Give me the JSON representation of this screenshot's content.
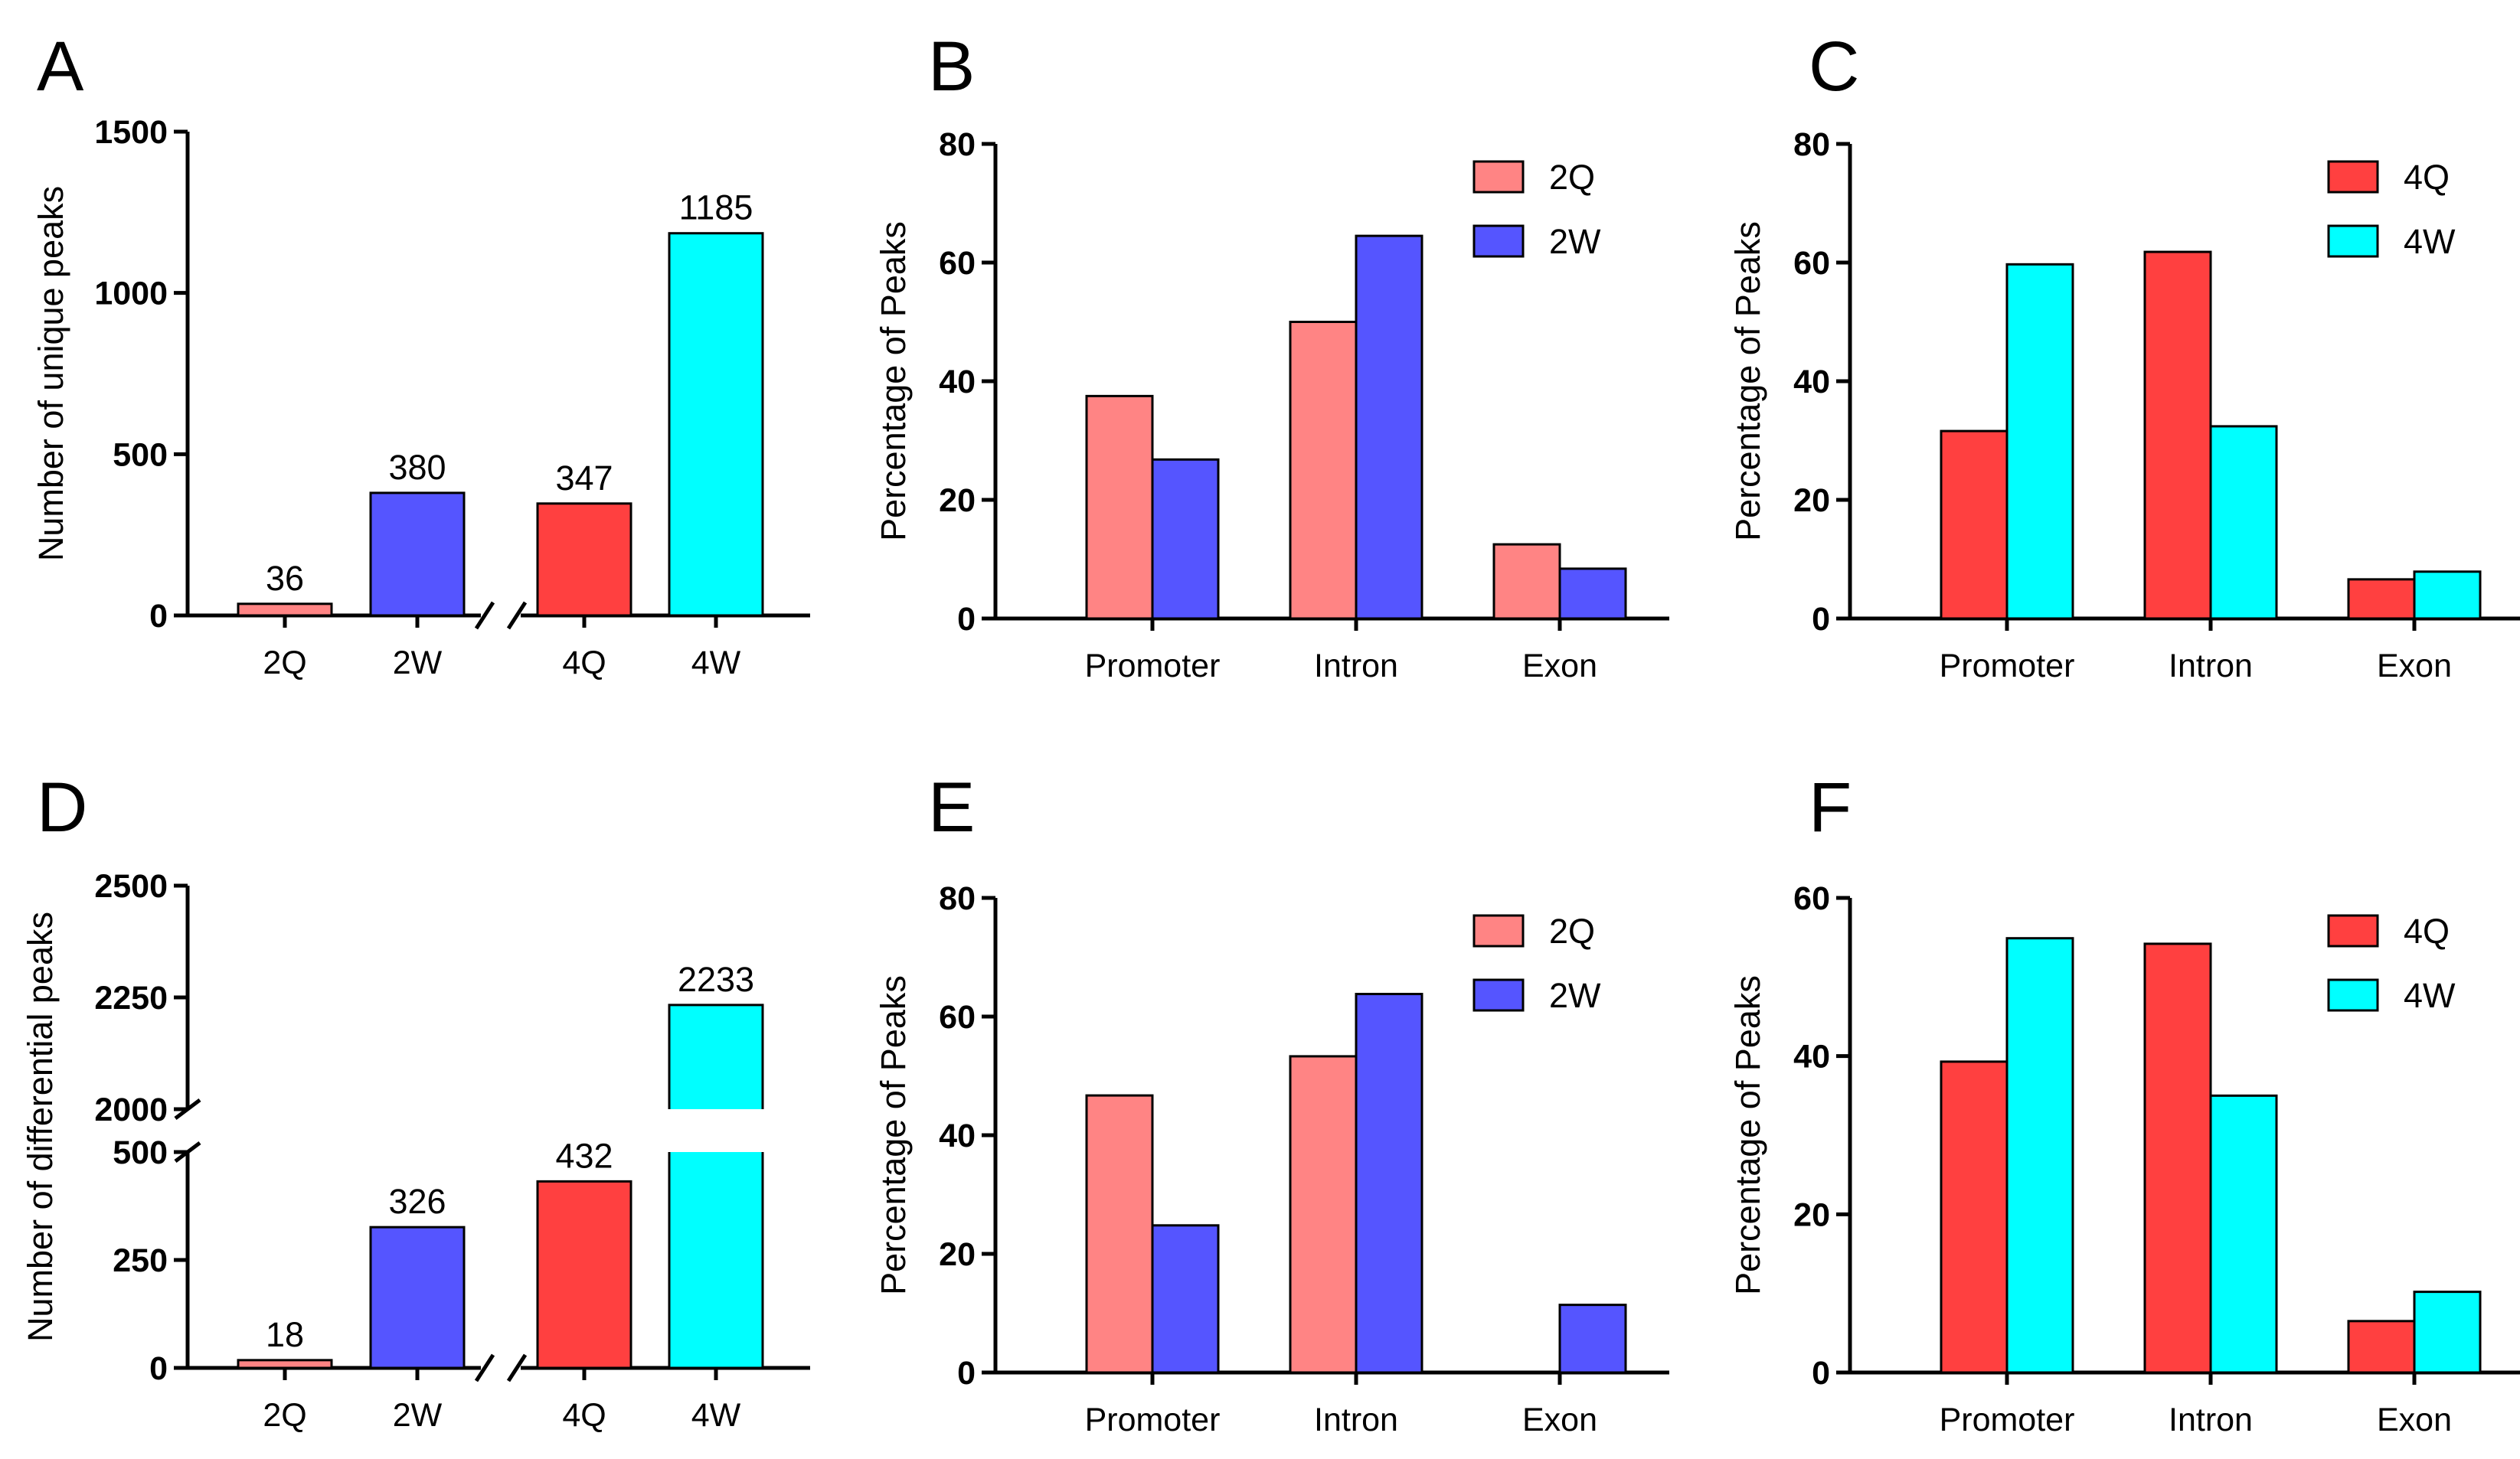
{
  "colors": {
    "2Q": "#ff8484",
    "2W": "#5555ff",
    "4Q": "#ff4040",
    "4W": "#00ffff",
    "axis": "#000000"
  },
  "chart_data": [
    {
      "id": "A",
      "type": "bar",
      "panel_label": "A",
      "title": "",
      "xlabel": "",
      "ylabel": "Number of unique peaks",
      "categories": [
        "2Q",
        "2W",
        "4Q",
        "4W"
      ],
      "values": [
        36,
        380,
        347,
        1185
      ],
      "value_labels": [
        "36",
        "380",
        "347",
        "1185"
      ],
      "bar_colors": [
        "2Q",
        "2W",
        "4Q",
        "4W"
      ],
      "ylim": [
        0,
        1500
      ],
      "yticks": [
        0,
        500,
        1000,
        1500
      ],
      "x_axis_break": "between 2W and 4Q",
      "grid": false
    },
    {
      "id": "B",
      "type": "bar",
      "panel_label": "B",
      "title": "",
      "xlabel": "",
      "ylabel": "Percentage of Peaks",
      "categories": [
        "Promoter",
        "Intron",
        "Exon"
      ],
      "series": [
        {
          "name": "2Q",
          "color": "2Q",
          "values": [
            37.5,
            50.0,
            12.5
          ]
        },
        {
          "name": "2W",
          "color": "2W",
          "values": [
            26.8,
            64.5,
            8.4
          ]
        }
      ],
      "ylim": [
        0,
        80
      ],
      "yticks": [
        0,
        20,
        40,
        60,
        80
      ],
      "legend": "top-right",
      "grid": false
    },
    {
      "id": "C",
      "type": "bar",
      "panel_label": "C",
      "title": "",
      "xlabel": "",
      "ylabel": "Percentage of Peaks",
      "categories": [
        "Promoter",
        "Intron",
        "Exon"
      ],
      "series": [
        {
          "name": "4Q",
          "color": "4Q",
          "values": [
            31.6,
            61.8,
            6.6
          ]
        },
        {
          "name": "4W",
          "color": "4W",
          "values": [
            59.7,
            32.4,
            7.9
          ]
        }
      ],
      "ylim": [
        0,
        80
      ],
      "yticks": [
        0,
        20,
        40,
        60,
        80
      ],
      "legend": "top-right",
      "grid": false
    },
    {
      "id": "D",
      "type": "bar",
      "panel_label": "D",
      "title": "",
      "xlabel": "",
      "ylabel": "Number of differential peaks",
      "categories": [
        "2Q",
        "2W",
        "4Q",
        "4W"
      ],
      "values": [
        18,
        326,
        432,
        2233
      ],
      "value_labels": [
        "18",
        "326",
        "432",
        "2233"
      ],
      "bar_colors": [
        "2Q",
        "2W",
        "4Q",
        "4W"
      ],
      "y_segments": [
        {
          "range": [
            0,
            500
          ],
          "ticks": [
            0,
            250,
            500
          ]
        },
        {
          "range": [
            2000,
            2500
          ],
          "ticks": [
            2000,
            2250,
            2500
          ]
        }
      ],
      "y_axis_break": "between 500 and 2000",
      "x_axis_break": "between 2W and 4Q",
      "grid": false
    },
    {
      "id": "E",
      "type": "bar",
      "panel_label": "E",
      "title": "",
      "xlabel": "",
      "ylabel": "Percentage of Peaks",
      "categories": [
        "Promoter",
        "Intron",
        "Exon"
      ],
      "series": [
        {
          "name": "2Q",
          "color": "2Q",
          "values": [
            46.7,
            53.3,
            0
          ]
        },
        {
          "name": "2W",
          "color": "2W",
          "values": [
            24.8,
            63.8,
            11.4
          ]
        }
      ],
      "ylim": [
        0,
        80
      ],
      "yticks": [
        0,
        20,
        40,
        60,
        80
      ],
      "legend": "top-right",
      "grid": false
    },
    {
      "id": "F",
      "type": "bar",
      "panel_label": "F",
      "title": "",
      "xlabel": "",
      "ylabel": "Percentage of Peaks",
      "categories": [
        "Promoter",
        "Intron",
        "Exon"
      ],
      "series": [
        {
          "name": "4Q",
          "color": "4Q",
          "values": [
            39.3,
            54.2,
            6.5
          ]
        },
        {
          "name": "4W",
          "color": "4W",
          "values": [
            54.9,
            35.0,
            10.2
          ]
        }
      ],
      "ylim": [
        0,
        60
      ],
      "yticks": [
        0,
        20,
        40,
        60
      ],
      "legend": "top-right",
      "grid": false
    }
  ]
}
